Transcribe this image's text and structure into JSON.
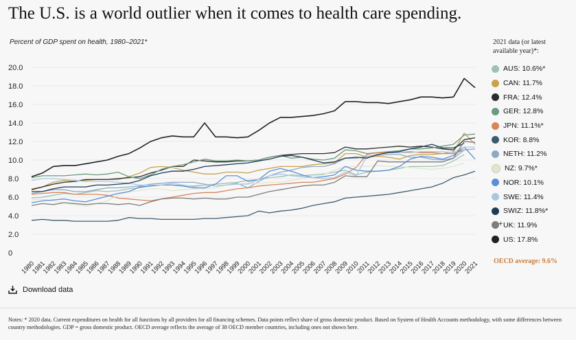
{
  "title": "The U.S. is a world outlier when it comes to health care spending.",
  "subtitle": "Percent of GDP spent on health, 1980–2021*",
  "legend_heading": "2021 data (or latest available year)*:",
  "oecd_label": "OECD average: 9.6%",
  "download_label": "Download data",
  "notes": "Notes: * 2020 data. Current expenditures on health for all functions by all providers for all financing schemes. Data points reflect share of gross domestic product. Based on System of Health Accounts methodology, with some differences between country methodologies. GDP = gross domestic product. OECD average reflects the average of 38 OECD member countries, including ones not shown here.",
  "icons": {
    "download": "download-icon"
  },
  "chart_data": {
    "type": "line",
    "title": "The U.S. is a world outlier when it comes to health care spending.",
    "ylabel": "Percent of GDP spent on health",
    "ylim": [
      0,
      20
    ],
    "yticks": [
      "0",
      "2.0",
      "4.0",
      "6.0",
      "8.0",
      "10.0",
      "12.0",
      "14.0",
      "16.0",
      "18.0",
      "20.0"
    ],
    "x": [
      "1980",
      "1981",
      "1982",
      "1983",
      "1984",
      "1985",
      "1986",
      "1987",
      "1988",
      "1989",
      "1990",
      "1991",
      "1992",
      "1993",
      "1994",
      "1995",
      "1996",
      "1997",
      "1998",
      "1999",
      "2000",
      "2001",
      "2002",
      "2003",
      "2004",
      "2005",
      "2006",
      "2007",
      "2008",
      "2009",
      "2010",
      "2011",
      "2012",
      "2013",
      "2014",
      "2015",
      "2016",
      "2017",
      "2018",
      "2019",
      "2020",
      "2021"
    ],
    "series": [
      {
        "name": "AUS",
        "label": "AUS: 10.6%*",
        "color": "#9ec2b2",
        "values": [
          5.9,
          6.0,
          6.2,
          6.4,
          6.3,
          6.5,
          6.7,
          6.6,
          6.7,
          6.9,
          7.0,
          7.2,
          7.3,
          7.3,
          7.2,
          7.2,
          7.3,
          7.4,
          7.5,
          7.6,
          7.8,
          7.9,
          8.1,
          8.2,
          8.4,
          8.3,
          8.4,
          8.5,
          8.7,
          8.9,
          8.4,
          8.7,
          8.8,
          8.9,
          9.1,
          9.3,
          9.3,
          9.3,
          9.4,
          9.9,
          10.6,
          null
        ]
      },
      {
        "name": "CAN",
        "label": "CAN: 11.7%",
        "color": "#c9a24a",
        "values": [
          6.9,
          7.1,
          7.6,
          7.8,
          7.7,
          7.8,
          7.9,
          7.9,
          7.9,
          8.2,
          8.6,
          9.2,
          9.3,
          9.2,
          8.9,
          8.7,
          8.5,
          8.5,
          8.7,
          8.7,
          8.6,
          8.9,
          9.1,
          9.3,
          9.3,
          9.3,
          9.5,
          9.6,
          9.7,
          10.7,
          10.7,
          10.3,
          10.4,
          10.3,
          10.1,
          10.5,
          10.6,
          10.6,
          10.7,
          10.9,
          12.9,
          11.7
        ]
      },
      {
        "name": "FRA",
        "label": "FRA: 12.4%",
        "color": "#2b2b2b",
        "values": [
          6.8,
          7.1,
          7.4,
          7.6,
          7.7,
          7.9,
          7.9,
          7.9,
          8.0,
          8.1,
          8.2,
          8.6,
          8.9,
          9.3,
          9.3,
          10.0,
          9.9,
          9.8,
          9.8,
          9.9,
          9.9,
          10.0,
          10.3,
          10.5,
          10.6,
          10.7,
          10.7,
          10.7,
          10.8,
          11.4,
          11.2,
          11.2,
          11.3,
          11.4,
          11.5,
          11.4,
          11.5,
          11.4,
          11.2,
          11.1,
          12.2,
          12.4
        ]
      },
      {
        "name": "GER",
        "label": "GER: 12.8%",
        "color": "#6c9a7c",
        "values": [
          8.1,
          8.3,
          8.3,
          8.3,
          8.4,
          8.5,
          8.4,
          8.5,
          8.7,
          8.2,
          8.0,
          8.4,
          9.0,
          9.3,
          9.5,
          9.8,
          10.1,
          9.9,
          9.9,
          10.0,
          9.9,
          10.0,
          10.3,
          10.5,
          10.2,
          10.3,
          10.1,
          10.0,
          10.2,
          11.1,
          11.0,
          10.7,
          10.8,
          10.9,
          11.0,
          11.2,
          11.2,
          11.3,
          11.5,
          11.7,
          12.7,
          12.8
        ]
      },
      {
        "name": "JPN",
        "label": "JPN: 11.1%*",
        "color": "#d8845a",
        "values": [
          6.3,
          6.4,
          6.5,
          6.5,
          6.3,
          6.3,
          6.3,
          6.2,
          5.9,
          5.8,
          5.7,
          5.6,
          5.8,
          6.0,
          6.2,
          6.4,
          6.5,
          6.5,
          6.7,
          6.9,
          7.0,
          7.2,
          7.3,
          7.4,
          7.5,
          7.6,
          7.6,
          7.8,
          8.0,
          8.5,
          9.2,
          10.6,
          10.8,
          10.8,
          10.8,
          10.9,
          10.8,
          10.8,
          10.7,
          10.7,
          11.1,
          null
        ]
      },
      {
        "name": "KOR",
        "label": "KOR: 8.8%",
        "color": "#3d5a6c",
        "values": [
          3.5,
          3.6,
          3.5,
          3.5,
          3.4,
          3.4,
          3.4,
          3.4,
          3.5,
          3.8,
          3.7,
          3.7,
          3.6,
          3.6,
          3.6,
          3.6,
          3.7,
          3.7,
          3.8,
          3.9,
          4.0,
          4.5,
          4.3,
          4.5,
          4.6,
          4.8,
          5.1,
          5.3,
          5.5,
          5.9,
          6.0,
          6.1,
          6.2,
          6.3,
          6.5,
          6.7,
          6.9,
          7.1,
          7.5,
          8.1,
          8.4,
          8.8
        ]
      },
      {
        "name": "NETH",
        "label": "NETH: 11.2%",
        "color": "#8fa9c4",
        "values": [
          6.4,
          6.6,
          6.8,
          6.8,
          6.6,
          6.6,
          6.8,
          7.0,
          7.0,
          7.1,
          7.2,
          7.4,
          7.5,
          7.6,
          7.6,
          7.6,
          7.4,
          7.2,
          7.3,
          7.5,
          7.0,
          7.7,
          8.3,
          8.7,
          8.9,
          9.2,
          9.3,
          9.3,
          9.6,
          10.2,
          10.2,
          10.4,
          10.5,
          10.6,
          10.6,
          10.3,
          10.3,
          10.1,
          10.0,
          10.2,
          11.1,
          11.2
        ]
      },
      {
        "name": "NZ",
        "label": "NZ: 9.7%*",
        "color": "#e2e6cf",
        "values": [
          5.7,
          5.8,
          5.6,
          5.4,
          5.2,
          5.0,
          5.3,
          5.6,
          6.2,
          6.6,
          6.7,
          6.9,
          6.9,
          6.7,
          6.8,
          6.9,
          6.9,
          7.0,
          7.3,
          7.4,
          7.5,
          7.5,
          7.6,
          7.6,
          7.8,
          8.0,
          8.3,
          8.4,
          8.9,
          9.3,
          9.3,
          9.3,
          9.4,
          9.3,
          9.3,
          9.2,
          9.1,
          9.0,
          9.1,
          9.3,
          9.7,
          null
        ]
      },
      {
        "name": "NOR",
        "label": "NOR: 10.1%",
        "color": "#5a8fd6",
        "values": [
          5.4,
          5.6,
          5.7,
          5.8,
          5.6,
          5.5,
          5.8,
          6.1,
          6.4,
          6.6,
          7.1,
          7.2,
          7.3,
          7.3,
          7.2,
          7.0,
          7.0,
          7.4,
          8.3,
          8.3,
          7.7,
          7.9,
          8.8,
          9.1,
          8.8,
          8.4,
          8.1,
          8.2,
          8.4,
          9.3,
          8.9,
          8.8,
          8.8,
          8.9,
          9.3,
          10.1,
          10.4,
          10.3,
          10.1,
          10.5,
          11.4,
          10.1
        ]
      },
      {
        "name": "SWE",
        "label": "SWE: 11.4%",
        "color": "#a9c8e0",
        "values": [
          7.8,
          8.0,
          8.0,
          7.9,
          7.8,
          7.7,
          7.7,
          7.7,
          7.6,
          7.5,
          7.3,
          7.3,
          7.3,
          7.5,
          7.3,
          7.1,
          7.3,
          7.2,
          7.3,
          7.4,
          7.4,
          7.9,
          8.3,
          8.5,
          8.3,
          8.2,
          8.1,
          8.0,
          8.1,
          8.7,
          8.3,
          10.4,
          10.6,
          10.8,
          10.8,
          10.8,
          10.9,
          10.9,
          10.9,
          10.8,
          11.4,
          11.4
        ]
      },
      {
        "name": "SWIZ",
        "label": "SWIZ: 11.8%*",
        "color": "#1e3a55",
        "values": [
          6.6,
          6.6,
          6.9,
          7.1,
          7.1,
          7.1,
          7.3,
          7.3,
          7.4,
          7.5,
          7.8,
          8.3,
          8.6,
          8.8,
          8.8,
          9.0,
          9.3,
          9.4,
          9.5,
          9.6,
          9.7,
          9.9,
          10.1,
          10.4,
          10.5,
          10.3,
          10.0,
          9.7,
          9.8,
          10.2,
          10.3,
          10.2,
          10.6,
          10.8,
          10.9,
          11.2,
          11.4,
          11.7,
          11.3,
          11.3,
          11.8,
          null
        ]
      },
      {
        "name": "UK",
        "label": "UK: 11.9%",
        "color": "#7d7d7d",
        "values": [
          5.1,
          5.3,
          5.2,
          5.4,
          5.3,
          5.2,
          5.3,
          5.3,
          5.2,
          5.3,
          5.1,
          5.5,
          5.8,
          5.9,
          5.9,
          5.8,
          5.9,
          5.8,
          5.8,
          6.0,
          6.0,
          6.3,
          6.6,
          6.8,
          7.0,
          7.2,
          7.3,
          7.3,
          7.6,
          8.3,
          8.2,
          8.2,
          9.9,
          9.8,
          9.8,
          9.8,
          9.8,
          9.8,
          9.8,
          10.2,
          12.0,
          11.9
        ]
      },
      {
        "name": "US",
        "label": "US: 17.8%",
        "color": "#1b2326",
        "values": [
          8.2,
          8.6,
          9.3,
          9.4,
          9.4,
          9.6,
          9.8,
          10.0,
          10.4,
          10.7,
          11.3,
          12.0,
          12.4,
          12.6,
          12.5,
          12.5,
          14.0,
          12.5,
          12.5,
          12.4,
          12.5,
          13.2,
          14.0,
          14.6,
          14.6,
          14.7,
          14.8,
          15.0,
          15.3,
          16.3,
          16.3,
          16.2,
          16.2,
          16.1,
          16.3,
          16.5,
          16.8,
          16.8,
          16.7,
          16.8,
          18.8,
          17.8
        ]
      }
    ]
  }
}
